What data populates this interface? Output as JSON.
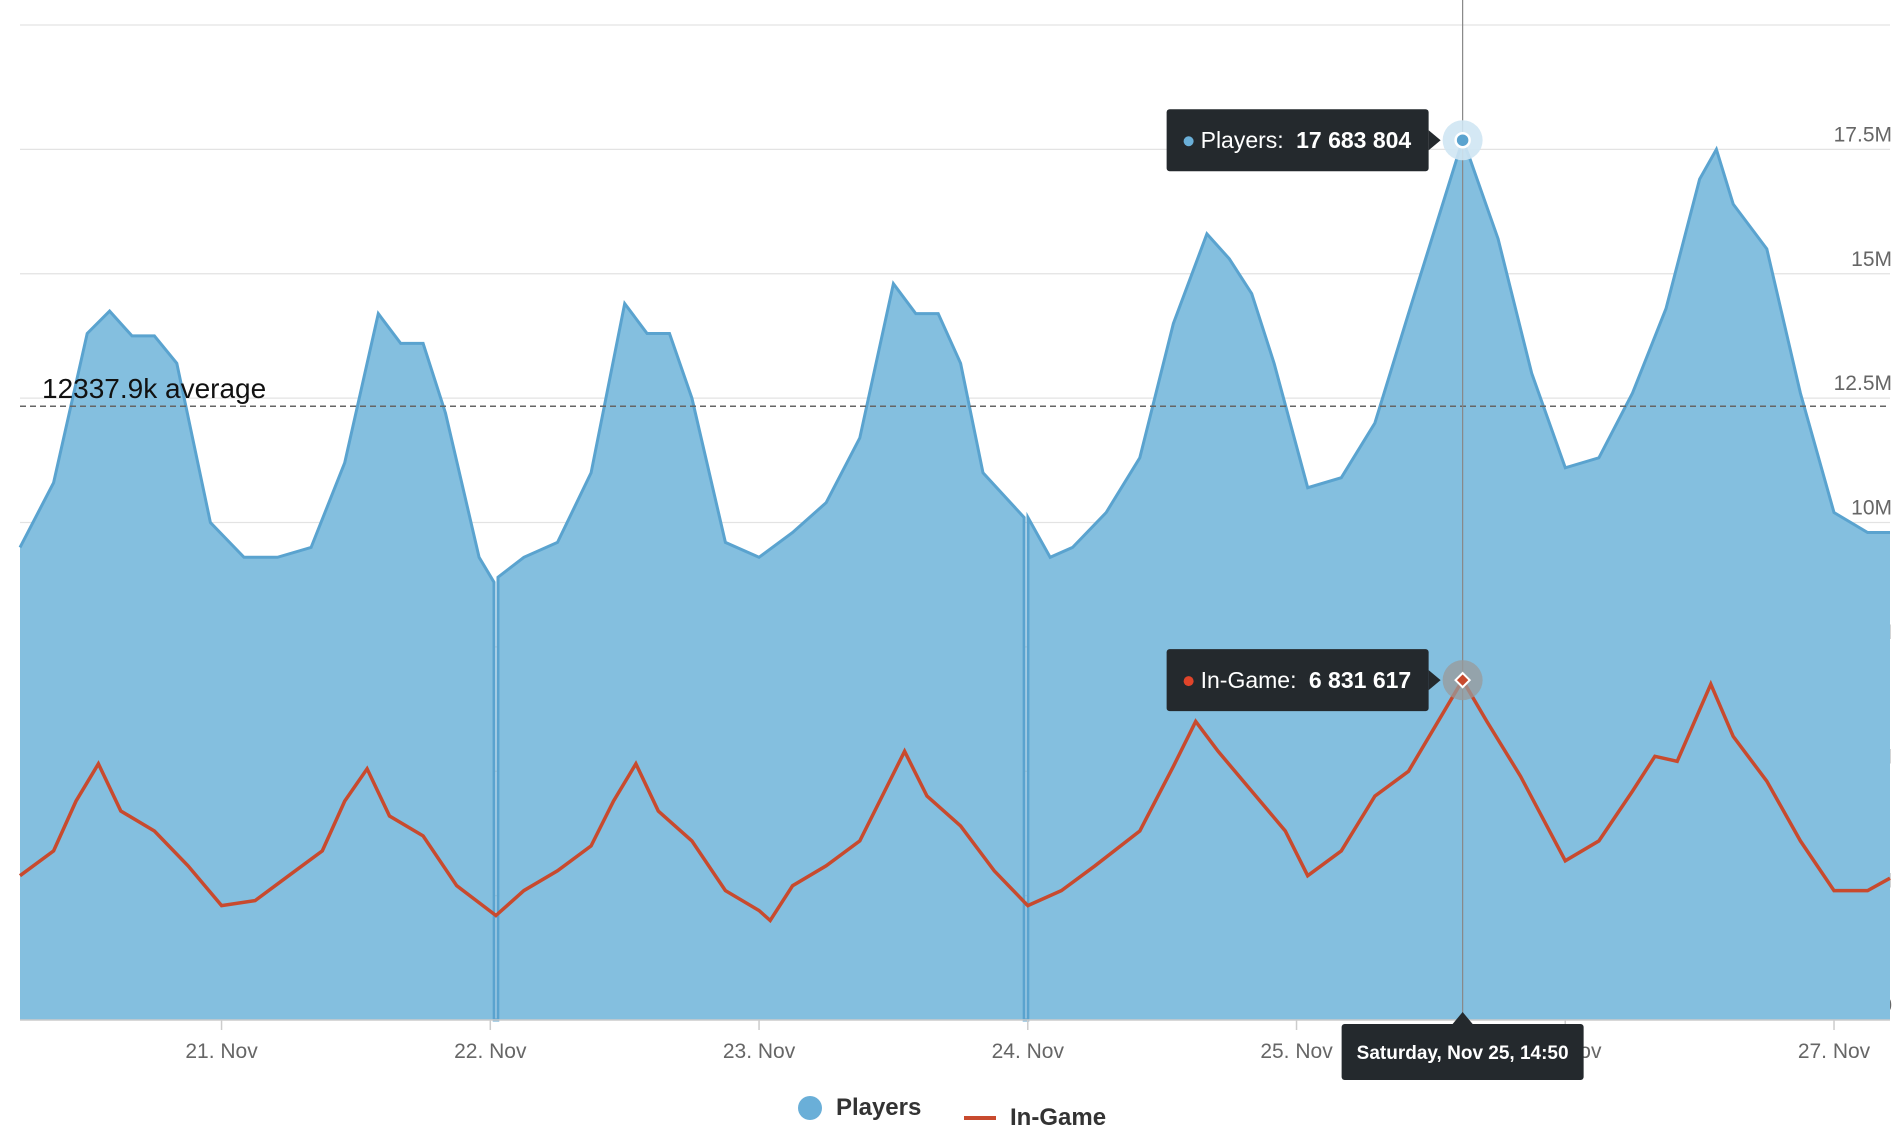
{
  "chart_data": {
    "type": "area",
    "x_axis": {
      "tick_labels": [
        "21. Nov",
        "22. Nov",
        "23. Nov",
        "24. Nov",
        "25. Nov",
        "26. Nov",
        "27. Nov"
      ],
      "range": [
        "2023-11-20T06:00",
        "2023-11-27T05:00"
      ]
    },
    "y_axis": {
      "tick_labels": [
        "0",
        "2.5M",
        "5M",
        "7.5M",
        "10M",
        "12.5M",
        "15M",
        "17.5M"
      ],
      "ylim": [
        0,
        20000000
      ],
      "position": "right"
    },
    "grid": true,
    "average": {
      "value": 12337900,
      "label": "12337.9k average"
    },
    "series": [
      {
        "name": "Players",
        "type": "area",
        "color": "#6aafd8",
        "points": [
          [
            "2023-11-20T06:00",
            9500000
          ],
          [
            "2023-11-20T09:00",
            10800000
          ],
          [
            "2023-11-20T12:00",
            13800000
          ],
          [
            "2023-11-20T14:00",
            14250000
          ],
          [
            "2023-11-20T16:00",
            13750000
          ],
          [
            "2023-11-20T18:00",
            13750000
          ],
          [
            "2023-11-20T20:00",
            13200000
          ],
          [
            "2023-11-20T23:00",
            10000000
          ],
          [
            "2023-11-21T02:00",
            9300000
          ],
          [
            "2023-11-21T05:00",
            9300000
          ],
          [
            "2023-11-21T08:00",
            9500000
          ],
          [
            "2023-11-21T11:00",
            11200000
          ],
          [
            "2023-11-21T14:00",
            14200000
          ],
          [
            "2023-11-21T16:00",
            13600000
          ],
          [
            "2023-11-21T18:00",
            13600000
          ],
          [
            "2023-11-21T20:00",
            12200000
          ],
          [
            "2023-11-21T23:00",
            9300000
          ],
          [
            "2023-11-22T00:20",
            8800000
          ],
          [
            "2023-11-22T00:21",
            0
          ],
          [
            "2023-11-22T00:40",
            0
          ],
          [
            "2023-11-22T00:41",
            8900000
          ],
          [
            "2023-11-22T03:00",
            9300000
          ],
          [
            "2023-11-22T06:00",
            9600000
          ],
          [
            "2023-11-22T09:00",
            11000000
          ],
          [
            "2023-11-22T12:00",
            14400000
          ],
          [
            "2023-11-22T14:00",
            13800000
          ],
          [
            "2023-11-22T16:00",
            13800000
          ],
          [
            "2023-11-22T18:00",
            12500000
          ],
          [
            "2023-11-22T21:00",
            9600000
          ],
          [
            "2023-11-23T00:00",
            9300000
          ],
          [
            "2023-11-23T03:00",
            9800000
          ],
          [
            "2023-11-23T06:00",
            10400000
          ],
          [
            "2023-11-23T09:00",
            11700000
          ],
          [
            "2023-11-23T12:00",
            14800000
          ],
          [
            "2023-11-23T14:00",
            14200000
          ],
          [
            "2023-11-23T16:00",
            14200000
          ],
          [
            "2023-11-23T18:00",
            13200000
          ],
          [
            "2023-11-23T20:00",
            11000000
          ],
          [
            "2023-11-23T23:40",
            10100000
          ],
          [
            "2023-11-23T23:41",
            0
          ],
          [
            "2023-11-24T00:00",
            0
          ],
          [
            "2023-11-24T00:01",
            10100000
          ],
          [
            "2023-11-24T02:00",
            9300000
          ],
          [
            "2023-11-24T04:00",
            9500000
          ],
          [
            "2023-11-24T07:00",
            10200000
          ],
          [
            "2023-11-24T10:00",
            11300000
          ],
          [
            "2023-11-24T13:00",
            14000000
          ],
          [
            "2023-11-24T16:00",
            15800000
          ],
          [
            "2023-11-24T18:00",
            15300000
          ],
          [
            "2023-11-24T20:00",
            14600000
          ],
          [
            "2023-11-24T22:00",
            13200000
          ],
          [
            "2023-11-25T01:00",
            10700000
          ],
          [
            "2023-11-25T04:00",
            10900000
          ],
          [
            "2023-11-25T07:00",
            12000000
          ],
          [
            "2023-11-25T10:00",
            14200000
          ],
          [
            "2023-11-25T14:50",
            17683804
          ],
          [
            "2023-11-25T15:30",
            17300000
          ],
          [
            "2023-11-25T18:00",
            15700000
          ],
          [
            "2023-11-25T21:00",
            13000000
          ],
          [
            "2023-11-26T00:00",
            11100000
          ],
          [
            "2023-11-26T03:00",
            11300000
          ],
          [
            "2023-11-26T06:00",
            12600000
          ],
          [
            "2023-11-26T09:00",
            14300000
          ],
          [
            "2023-11-26T12:00",
            16900000
          ],
          [
            "2023-11-26T13:30",
            17500000
          ],
          [
            "2023-11-26T15:00",
            16400000
          ],
          [
            "2023-11-26T18:00",
            15500000
          ],
          [
            "2023-11-26T21:00",
            12600000
          ],
          [
            "2023-11-27T00:00",
            10200000
          ],
          [
            "2023-11-27T03:00",
            9800000
          ],
          [
            "2023-11-27T05:00",
            9800000
          ]
        ]
      },
      {
        "name": "In-Game",
        "type": "line",
        "color": "#c84a2e",
        "points": [
          [
            "2023-11-20T06:00",
            2900000
          ],
          [
            "2023-11-20T09:00",
            3400000
          ],
          [
            "2023-11-20T11:00",
            4400000
          ],
          [
            "2023-11-20T13:00",
            5150000
          ],
          [
            "2023-11-20T15:00",
            4200000
          ],
          [
            "2023-11-20T18:00",
            3800000
          ],
          [
            "2023-11-20T21:00",
            3100000
          ],
          [
            "2023-11-21T00:00",
            2300000
          ],
          [
            "2023-11-21T03:00",
            2400000
          ],
          [
            "2023-11-21T06:00",
            2900000
          ],
          [
            "2023-11-21T09:00",
            3400000
          ],
          [
            "2023-11-21T11:00",
            4400000
          ],
          [
            "2023-11-21T13:00",
            5050000
          ],
          [
            "2023-11-21T15:00",
            4100000
          ],
          [
            "2023-11-21T18:00",
            3700000
          ],
          [
            "2023-11-21T21:00",
            2700000
          ],
          [
            "2023-11-22T00:30",
            2100000
          ],
          [
            "2023-11-22T03:00",
            2600000
          ],
          [
            "2023-11-22T06:00",
            3000000
          ],
          [
            "2023-11-22T09:00",
            3500000
          ],
          [
            "2023-11-22T11:00",
            4400000
          ],
          [
            "2023-11-22T13:00",
            5150000
          ],
          [
            "2023-11-22T15:00",
            4200000
          ],
          [
            "2023-11-22T18:00",
            3600000
          ],
          [
            "2023-11-22T21:00",
            2600000
          ],
          [
            "2023-11-23T00:00",
            2200000
          ],
          [
            "2023-11-23T01:00",
            2000000
          ],
          [
            "2023-11-23T03:00",
            2700000
          ],
          [
            "2023-11-23T06:00",
            3100000
          ],
          [
            "2023-11-23T09:00",
            3600000
          ],
          [
            "2023-11-23T11:00",
            4500000
          ],
          [
            "2023-11-23T13:00",
            5400000
          ],
          [
            "2023-11-23T15:00",
            4500000
          ],
          [
            "2023-11-23T18:00",
            3900000
          ],
          [
            "2023-11-23T21:00",
            3000000
          ],
          [
            "2023-11-24T00:00",
            2300000
          ],
          [
            "2023-11-24T03:00",
            2600000
          ],
          [
            "2023-11-24T06:00",
            3100000
          ],
          [
            "2023-11-24T10:00",
            3800000
          ],
          [
            "2023-11-24T13:00",
            5100000
          ],
          [
            "2023-11-24T15:00",
            6000000
          ],
          [
            "2023-11-24T17:00",
            5400000
          ],
          [
            "2023-11-24T20:00",
            4600000
          ],
          [
            "2023-11-24T23:00",
            3800000
          ],
          [
            "2023-11-25T01:00",
            2900000
          ],
          [
            "2023-11-25T04:00",
            3400000
          ],
          [
            "2023-11-25T07:00",
            4500000
          ],
          [
            "2023-11-25T10:00",
            5000000
          ],
          [
            "2023-11-25T14:50",
            6831617
          ],
          [
            "2023-11-25T17:00",
            6000000
          ],
          [
            "2023-11-25T20:00",
            4900000
          ],
          [
            "2023-11-26T00:00",
            3200000
          ],
          [
            "2023-11-26T03:00",
            3600000
          ],
          [
            "2023-11-26T06:00",
            4600000
          ],
          [
            "2023-11-26T08:00",
            5300000
          ],
          [
            "2023-11-26T10:00",
            5200000
          ],
          [
            "2023-11-26T13:00",
            6750000
          ],
          [
            "2023-11-26T15:00",
            5700000
          ],
          [
            "2023-11-26T18:00",
            4800000
          ],
          [
            "2023-11-26T21:00",
            3600000
          ],
          [
            "2023-11-27T00:00",
            2600000
          ],
          [
            "2023-11-27T03:00",
            2600000
          ],
          [
            "2023-11-27T05:00",
            2850000
          ]
        ]
      }
    ],
    "tooltip": {
      "date": "Saturday, Nov 25, 14:50",
      "players_label": "Players:",
      "players_value": "17 683 804",
      "ingame_label": "In-Game:",
      "ingame_value": "6 831 617",
      "x": "2023-11-25T14:50"
    },
    "legend": {
      "placement": "bottom-center",
      "items": [
        "Players",
        "In-Game"
      ]
    }
  }
}
